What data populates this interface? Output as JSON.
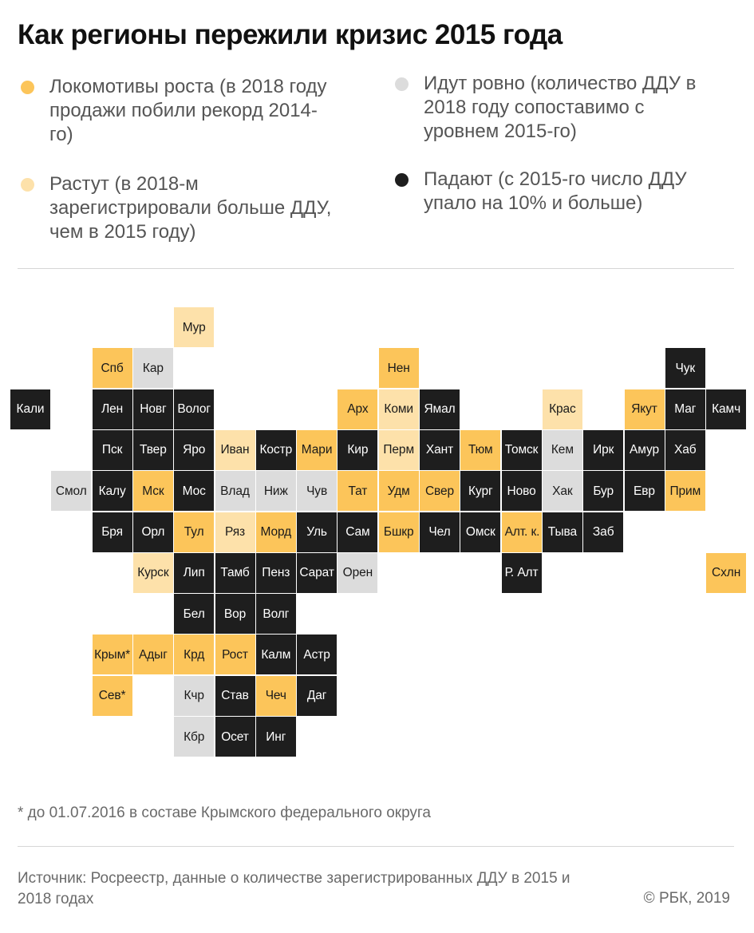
{
  "title": "Как регионы пережили кризис 2015 года",
  "colors": {
    "record": "#fcc55a",
    "growing": "#fde1aa",
    "flat": "#dcdcdc",
    "falling": "#1e1e1e"
  },
  "legend": [
    {
      "key": "record",
      "label": "Локомотивы роста (в 2018 году продажи побили рекорд 2014-го)"
    },
    {
      "key": "flat",
      "label": "Идут ровно (количество ДДУ в 2018 году сопоставимо с уровнем 2015-го)"
    },
    {
      "key": "growing",
      "label": "Растут (в 2018-м зарегистрировали больше ДДУ, чем в 2015 году)"
    },
    {
      "key": "falling",
      "label": "Падают (с 2015-го число ДДУ упало на 10% и больше)"
    }
  ],
  "regions": [
    {
      "label": "Мур",
      "col": 4,
      "row": 0,
      "cat": "growing"
    },
    {
      "label": "Спб",
      "col": 2,
      "row": 1,
      "cat": "record"
    },
    {
      "label": "Кар",
      "col": 3,
      "row": 1,
      "cat": "flat"
    },
    {
      "label": "Нен",
      "col": 9,
      "row": 1,
      "cat": "record"
    },
    {
      "label": "Чук",
      "col": 16,
      "row": 1,
      "cat": "falling"
    },
    {
      "label": "Кали",
      "col": 0,
      "row": 2,
      "cat": "falling"
    },
    {
      "label": "Лен",
      "col": 2,
      "row": 2,
      "cat": "falling"
    },
    {
      "label": "Новг",
      "col": 3,
      "row": 2,
      "cat": "falling"
    },
    {
      "label": "Волог",
      "col": 4,
      "row": 2,
      "cat": "falling"
    },
    {
      "label": "Арх",
      "col": 8,
      "row": 2,
      "cat": "record"
    },
    {
      "label": "Коми",
      "col": 9,
      "row": 2,
      "cat": "growing"
    },
    {
      "label": "Ямал",
      "col": 10,
      "row": 2,
      "cat": "falling"
    },
    {
      "label": "Крас",
      "col": 13,
      "row": 2,
      "cat": "growing"
    },
    {
      "label": "Якут",
      "col": 15,
      "row": 2,
      "cat": "record"
    },
    {
      "label": "Маг",
      "col": 16,
      "row": 2,
      "cat": "falling"
    },
    {
      "label": "Камч",
      "col": 17,
      "row": 2,
      "cat": "falling"
    },
    {
      "label": "Пск",
      "col": 2,
      "row": 3,
      "cat": "falling"
    },
    {
      "label": "Твер",
      "col": 3,
      "row": 3,
      "cat": "falling"
    },
    {
      "label": "Яро",
      "col": 4,
      "row": 3,
      "cat": "falling"
    },
    {
      "label": "Иван",
      "col": 5,
      "row": 3,
      "cat": "growing"
    },
    {
      "label": "Костр",
      "col": 6,
      "row": 3,
      "cat": "falling"
    },
    {
      "label": "Мари",
      "col": 7,
      "row": 3,
      "cat": "record"
    },
    {
      "label": "Кир",
      "col": 8,
      "row": 3,
      "cat": "falling"
    },
    {
      "label": "Перм",
      "col": 9,
      "row": 3,
      "cat": "growing"
    },
    {
      "label": "Хант",
      "col": 10,
      "row": 3,
      "cat": "falling"
    },
    {
      "label": "Тюм",
      "col": 11,
      "row": 3,
      "cat": "record"
    },
    {
      "label": "Томск",
      "col": 12,
      "row": 3,
      "cat": "falling"
    },
    {
      "label": "Кем",
      "col": 13,
      "row": 3,
      "cat": "flat"
    },
    {
      "label": "Ирк",
      "col": 14,
      "row": 3,
      "cat": "falling"
    },
    {
      "label": "Амур",
      "col": 15,
      "row": 3,
      "cat": "falling"
    },
    {
      "label": "Хаб",
      "col": 16,
      "row": 3,
      "cat": "falling"
    },
    {
      "label": "Смол",
      "col": 1,
      "row": 4,
      "cat": "flat"
    },
    {
      "label": "Калу",
      "col": 2,
      "row": 4,
      "cat": "falling"
    },
    {
      "label": "Мск",
      "col": 3,
      "row": 4,
      "cat": "record"
    },
    {
      "label": "Мос",
      "col": 4,
      "row": 4,
      "cat": "falling"
    },
    {
      "label": "Влад",
      "col": 5,
      "row": 4,
      "cat": "flat"
    },
    {
      "label": "Ниж",
      "col": 6,
      "row": 4,
      "cat": "flat"
    },
    {
      "label": "Чув",
      "col": 7,
      "row": 4,
      "cat": "flat"
    },
    {
      "label": "Тат",
      "col": 8,
      "row": 4,
      "cat": "record"
    },
    {
      "label": "Удм",
      "col": 9,
      "row": 4,
      "cat": "record"
    },
    {
      "label": "Свер",
      "col": 10,
      "row": 4,
      "cat": "record"
    },
    {
      "label": "Кург",
      "col": 11,
      "row": 4,
      "cat": "falling"
    },
    {
      "label": "Ново",
      "col": 12,
      "row": 4,
      "cat": "falling"
    },
    {
      "label": "Хак",
      "col": 13,
      "row": 4,
      "cat": "flat"
    },
    {
      "label": "Бур",
      "col": 14,
      "row": 4,
      "cat": "falling"
    },
    {
      "label": "Евр",
      "col": 15,
      "row": 4,
      "cat": "falling"
    },
    {
      "label": "Прим",
      "col": 16,
      "row": 4,
      "cat": "record"
    },
    {
      "label": "Бря",
      "col": 2,
      "row": 5,
      "cat": "falling"
    },
    {
      "label": "Орл",
      "col": 3,
      "row": 5,
      "cat": "falling"
    },
    {
      "label": "Тул",
      "col": 4,
      "row": 5,
      "cat": "record"
    },
    {
      "label": "Ряз",
      "col": 5,
      "row": 5,
      "cat": "growing"
    },
    {
      "label": "Морд",
      "col": 6,
      "row": 5,
      "cat": "record"
    },
    {
      "label": "Уль",
      "col": 7,
      "row": 5,
      "cat": "falling"
    },
    {
      "label": "Сам",
      "col": 8,
      "row": 5,
      "cat": "falling"
    },
    {
      "label": "Бшкр",
      "col": 9,
      "row": 5,
      "cat": "record"
    },
    {
      "label": "Чел",
      "col": 10,
      "row": 5,
      "cat": "falling"
    },
    {
      "label": "Омск",
      "col": 11,
      "row": 5,
      "cat": "falling"
    },
    {
      "label": "Алт. к.",
      "col": 12,
      "row": 5,
      "cat": "record",
      "multi": true
    },
    {
      "label": "Тыва",
      "col": 13,
      "row": 5,
      "cat": "falling"
    },
    {
      "label": "Заб",
      "col": 14,
      "row": 5,
      "cat": "falling"
    },
    {
      "label": "Курск",
      "col": 3,
      "row": 6,
      "cat": "growing"
    },
    {
      "label": "Лип",
      "col": 4,
      "row": 6,
      "cat": "falling"
    },
    {
      "label": "Тамб",
      "col": 5,
      "row": 6,
      "cat": "falling"
    },
    {
      "label": "Пенз",
      "col": 6,
      "row": 6,
      "cat": "falling"
    },
    {
      "label": "Сарат",
      "col": 7,
      "row": 6,
      "cat": "falling"
    },
    {
      "label": "Орен",
      "col": 8,
      "row": 6,
      "cat": "flat"
    },
    {
      "label": "Р. Алт",
      "col": 12,
      "row": 6,
      "cat": "falling",
      "multi": true
    },
    {
      "label": "Схлн",
      "col": 17,
      "row": 6,
      "cat": "record"
    },
    {
      "label": "Бел",
      "col": 4,
      "row": 7,
      "cat": "falling"
    },
    {
      "label": "Вор",
      "col": 5,
      "row": 7,
      "cat": "falling"
    },
    {
      "label": "Волг",
      "col": 6,
      "row": 7,
      "cat": "falling"
    },
    {
      "label": "Крым*",
      "col": 2,
      "row": 8,
      "cat": "record"
    },
    {
      "label": "Адыг",
      "col": 3,
      "row": 8,
      "cat": "record"
    },
    {
      "label": "Крд",
      "col": 4,
      "row": 8,
      "cat": "record"
    },
    {
      "label": "Рост",
      "col": 5,
      "row": 8,
      "cat": "record"
    },
    {
      "label": "Калм",
      "col": 6,
      "row": 8,
      "cat": "falling"
    },
    {
      "label": "Астр",
      "col": 7,
      "row": 8,
      "cat": "falling"
    },
    {
      "label": "Сев*",
      "col": 2,
      "row": 9,
      "cat": "record"
    },
    {
      "label": "Кчр",
      "col": 4,
      "row": 9,
      "cat": "flat"
    },
    {
      "label": "Став",
      "col": 5,
      "row": 9,
      "cat": "falling"
    },
    {
      "label": "Чеч",
      "col": 6,
      "row": 9,
      "cat": "record"
    },
    {
      "label": "Даг",
      "col": 7,
      "row": 9,
      "cat": "falling"
    },
    {
      "label": "Кбр",
      "col": 4,
      "row": 10,
      "cat": "flat"
    },
    {
      "label": "Осет",
      "col": 5,
      "row": 10,
      "cat": "falling"
    },
    {
      "label": "Инг",
      "col": 6,
      "row": 10,
      "cat": "falling"
    }
  ],
  "footnote": "* до 01.07.2016 в составе Крымского федерального округа",
  "source": "Источник: Росреестр, данные о количестве зарегистрированных ДДУ в 2015 и 2018 годах",
  "copyright": "© РБК, 2019"
}
